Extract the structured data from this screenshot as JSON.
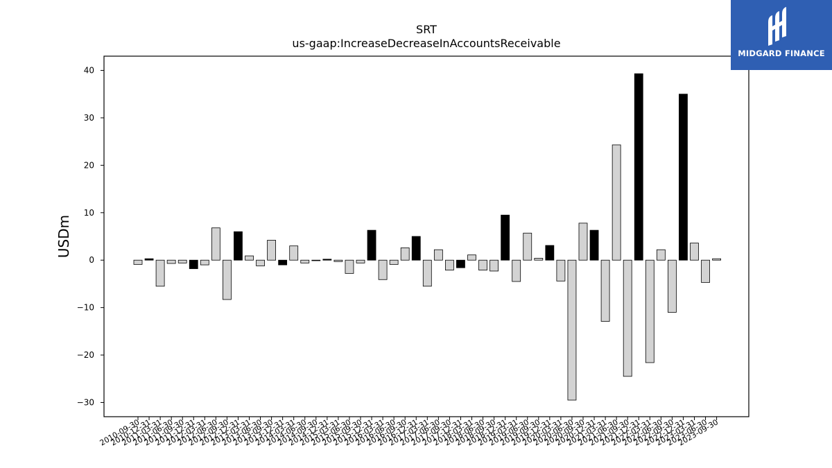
{
  "logo": {
    "text": "MIDGARD FINANCE",
    "background": "#2f5fb3"
  },
  "chart_data": {
    "type": "bar",
    "title": "SRT",
    "subtitle": "us-gaap:IncreaseDecreaseInAccountsReceivable",
    "xlabel": "",
    "ylabel": "USDm",
    "ylim": [
      -33,
      43
    ],
    "yticks": [
      -30,
      -20,
      -10,
      0,
      10,
      20,
      30,
      40
    ],
    "ytick_labels": [
      "−30",
      "−20",
      "−10",
      "0",
      "10",
      "20",
      "30",
      "40"
    ],
    "grid": false,
    "legend": "none",
    "colors": {
      "q4": "#000000",
      "other": "#d3d3d3",
      "edge": "#000000"
    },
    "categories": [
      "2010-09-30",
      "2010-12-31",
      "2011-03-31",
      "2011-06-30",
      "2011-09-30",
      "2011-12-31",
      "2012-03-31",
      "2012-06-30",
      "2012-09-30",
      "2012-12-31",
      "2013-03-31",
      "2013-06-30",
      "2013-09-30",
      "2013-12-31",
      "2014-03-31",
      "2014-06-30",
      "2014-09-30",
      "2014-12-31",
      "2015-03-31",
      "2015-06-30",
      "2015-09-30",
      "2015-12-31",
      "2016-03-31",
      "2016-06-30",
      "2016-09-30",
      "2016-12-31",
      "2017-03-31",
      "2017-06-30",
      "2017-09-30",
      "2017-12-31",
      "2018-03-31",
      "2018-06-30",
      "2018-09-30",
      "2018-12-31",
      "2019-03-31",
      "2019-06-30",
      "2019-09-30",
      "2019-12-31",
      "2020-03-31",
      "2020-06-30",
      "2020-09-30",
      "2020-12-31",
      "2021-03-31",
      "2021-06-30",
      "2021-09-30",
      "2021-12-31",
      "2022-03-31",
      "2022-06-30",
      "2022-09-30",
      "2022-12-31",
      "2023-03-31",
      "2023-06-30",
      "2023-09-30"
    ],
    "values": [
      -0.9,
      0.3,
      -5.5,
      -0.7,
      -0.6,
      -1.8,
      -1.0,
      6.8,
      -8.3,
      6.0,
      0.9,
      -1.2,
      4.2,
      -1.0,
      3.0,
      -0.6,
      -0.1,
      0.2,
      -0.3,
      -2.8,
      -0.6,
      6.3,
      -4.1,
      -0.9,
      2.6,
      5.0,
      -5.5,
      2.2,
      -2.1,
      -1.6,
      1.1,
      -2.1,
      -2.3,
      9.5,
      -4.5,
      5.7,
      0.4,
      3.1,
      -4.4,
      -29.5,
      7.8,
      6.3,
      -12.9,
      24.3,
      -24.5,
      39.3,
      -21.6,
      2.2,
      -11.0,
      35.0,
      3.6,
      -4.7,
      0.3
    ],
    "highlight_q4": [
      false,
      true,
      false,
      false,
      false,
      true,
      false,
      false,
      false,
      true,
      false,
      false,
      false,
      true,
      false,
      false,
      false,
      true,
      false,
      false,
      false,
      true,
      false,
      false,
      false,
      true,
      false,
      false,
      false,
      true,
      false,
      false,
      false,
      true,
      false,
      false,
      false,
      true,
      false,
      false,
      false,
      true,
      false,
      false,
      false,
      true,
      false,
      false,
      false,
      true,
      false,
      false,
      false
    ]
  }
}
